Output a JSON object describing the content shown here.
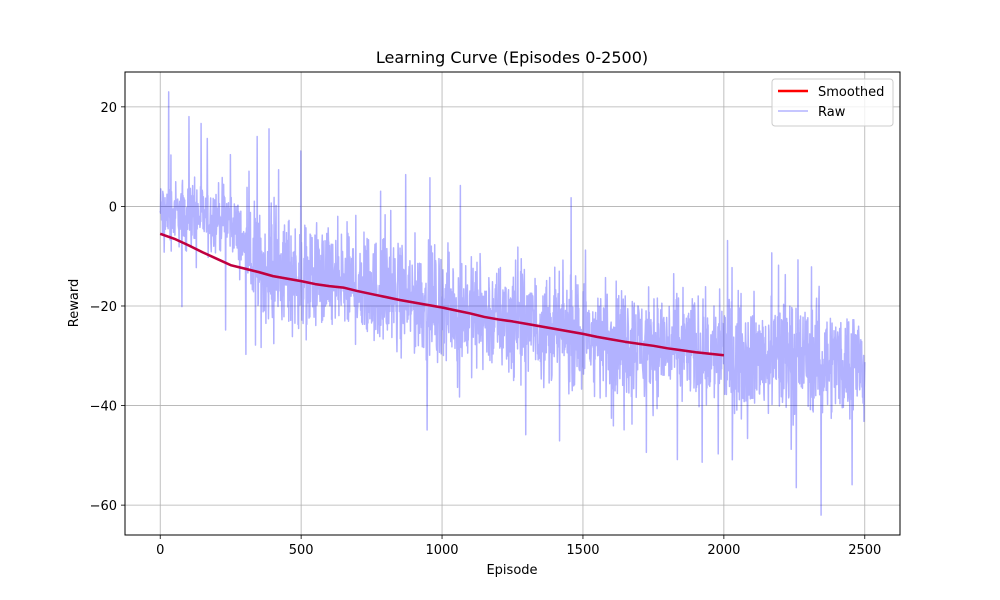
{
  "chart_data": {
    "type": "line",
    "title": "Learning Curve (Episodes 0-2500)",
    "xlabel": "Episode",
    "ylabel": "Reward",
    "xlim": [
      -125,
      2625
    ],
    "ylim": [
      -66,
      27
    ],
    "x_ticks": [
      0,
      500,
      1000,
      1500,
      2000,
      2500
    ],
    "y_ticks": [
      -60,
      -40,
      -20,
      0,
      20
    ],
    "grid": true,
    "legend_position": "top-right",
    "series": [
      {
        "name": "Smoothed",
        "color": "#ff0000",
        "x": [
          0,
          50,
          100,
          150,
          200,
          250,
          300,
          350,
          400,
          450,
          500,
          550,
          600,
          650,
          700,
          750,
          800,
          850,
          900,
          950,
          1000,
          1050,
          1100,
          1150,
          1200,
          1250,
          1300,
          1350,
          1400,
          1450,
          1500,
          1550,
          1600,
          1650,
          1700,
          1750,
          1800,
          1850,
          1900,
          1950,
          2000
        ],
        "y": [
          -5.5,
          -6.5,
          -7.8,
          -9.2,
          -10.5,
          -11.8,
          -12.5,
          -13.2,
          -14.0,
          -14.5,
          -15.0,
          -15.6,
          -16.0,
          -16.3,
          -17.0,
          -17.6,
          -18.2,
          -18.8,
          -19.3,
          -19.8,
          -20.3,
          -20.9,
          -21.5,
          -22.2,
          -22.7,
          -23.1,
          -23.6,
          -24.1,
          -24.6,
          -25.1,
          -25.6,
          -26.2,
          -26.7,
          -27.2,
          -27.6,
          -28.0,
          -28.5,
          -28.9,
          -29.3,
          -29.6,
          -29.9
        ]
      },
      {
        "name": "Raw",
        "color": "#0000ff",
        "alpha": 0.3,
        "episodes": 2501,
        "trend": {
          "x": [
            0,
            100,
            250,
            330,
            500,
            700,
            1000,
            1500,
            2000,
            2500
          ],
          "y": [
            -1.5,
            -1.5,
            -2.5,
            -12.0,
            -14.0,
            -16.0,
            -20.0,
            -26.0,
            -29.5,
            -31.5
          ]
        },
        "max": {
          "x": 30,
          "y": 23
        },
        "min": {
          "x": 2345,
          "y": -62
        }
      }
    ]
  }
}
